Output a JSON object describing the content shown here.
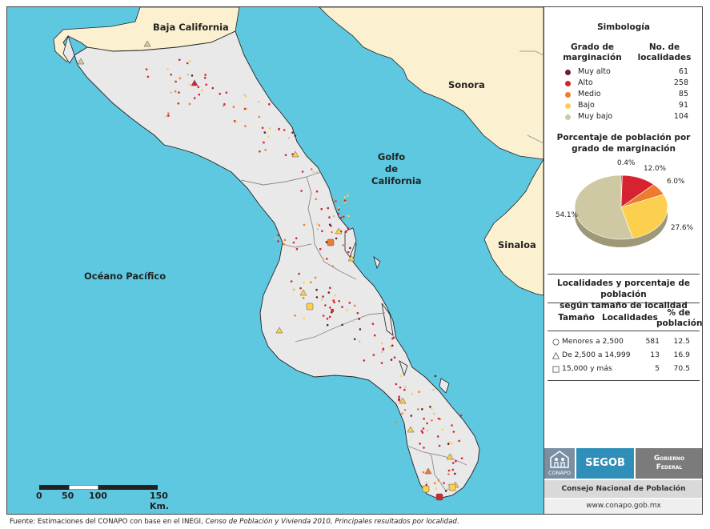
{
  "map": {
    "labels": {
      "baja_california": "Baja California",
      "sonora": "Sonora",
      "golfo_1": "Golfo",
      "golfo_2": "de",
      "golfo_3": "California",
      "sinaloa": "Sinaloa",
      "oceano": "Océano Pacífico"
    },
    "colors": {
      "sea": "#5ec8e0",
      "state": "#e9e9e9",
      "neighbor": "#fbf0cf",
      "border": "#222222",
      "municipal": "#8a8a8a"
    },
    "scale": {
      "labels": [
        "0",
        "50",
        "100",
        "150 Km."
      ]
    }
  },
  "legend": {
    "title": "Simbología",
    "col1_line1": "Grado de",
    "col1_line2": "marginación",
    "col2_line1": "No. de",
    "col2_line2": "localidades",
    "items": [
      {
        "label": "Muy alto",
        "count": "61",
        "color": "#6b1f2e"
      },
      {
        "label": "Alto",
        "count": "258",
        "color": "#d7232f"
      },
      {
        "label": "Medio",
        "count": "85",
        "color": "#ef7c2e"
      },
      {
        "label": "Bajo",
        "count": "91",
        "color": "#fcd04e"
      },
      {
        "label": "Muy bajo",
        "count": "104",
        "color": "#cfc9a3"
      }
    ]
  },
  "pie": {
    "title_line1": "Porcentaje de población por",
    "title_line2": "grado de marginación",
    "slices": [
      {
        "label": "0.4%",
        "value": 0.4,
        "color": "#6b1f2e"
      },
      {
        "label": "12.0%",
        "value": 12.0,
        "color": "#d7232f"
      },
      {
        "label": "6.0%",
        "value": 6.0,
        "color": "#ef7c2e"
      },
      {
        "label": "27.6%",
        "value": 27.6,
        "color": "#fcd04e"
      },
      {
        "label": "54.1%",
        "value": 54.1,
        "color": "#cfc9a3"
      }
    ]
  },
  "size_table": {
    "title_line1": "Localidades y porcentaje de población",
    "title_line2": "según tamaño de localidad",
    "headers": {
      "size": "Tamaño",
      "count": "Localidades",
      "pct_line1": "% de",
      "pct_line2": "población"
    },
    "rows": [
      {
        "symbol": "circle",
        "size": "Menores a 2,500",
        "count": "581",
        "pct": "12.5"
      },
      {
        "symbol": "triangle",
        "size": "De 2,500 a 14,999",
        "count": "13",
        "pct": "16.9"
      },
      {
        "symbol": "square",
        "size": "15,000 y más",
        "count": "5",
        "pct": "70.5"
      }
    ]
  },
  "logos": {
    "conapo": "CONAPO",
    "segob": "SEGOB",
    "gob_line1": "Gobierno",
    "gob_line2": "Federal",
    "council": "Consejo Nacional de Población",
    "url": "www.conapo.gob.mx"
  },
  "footer": {
    "prefix": "Fuente: Estimaciones del CONAPO con base en el INEGI, ",
    "italic": "Censo de Población y Vivienda 2010, Principales resultados por localidad",
    "suffix": "."
  }
}
